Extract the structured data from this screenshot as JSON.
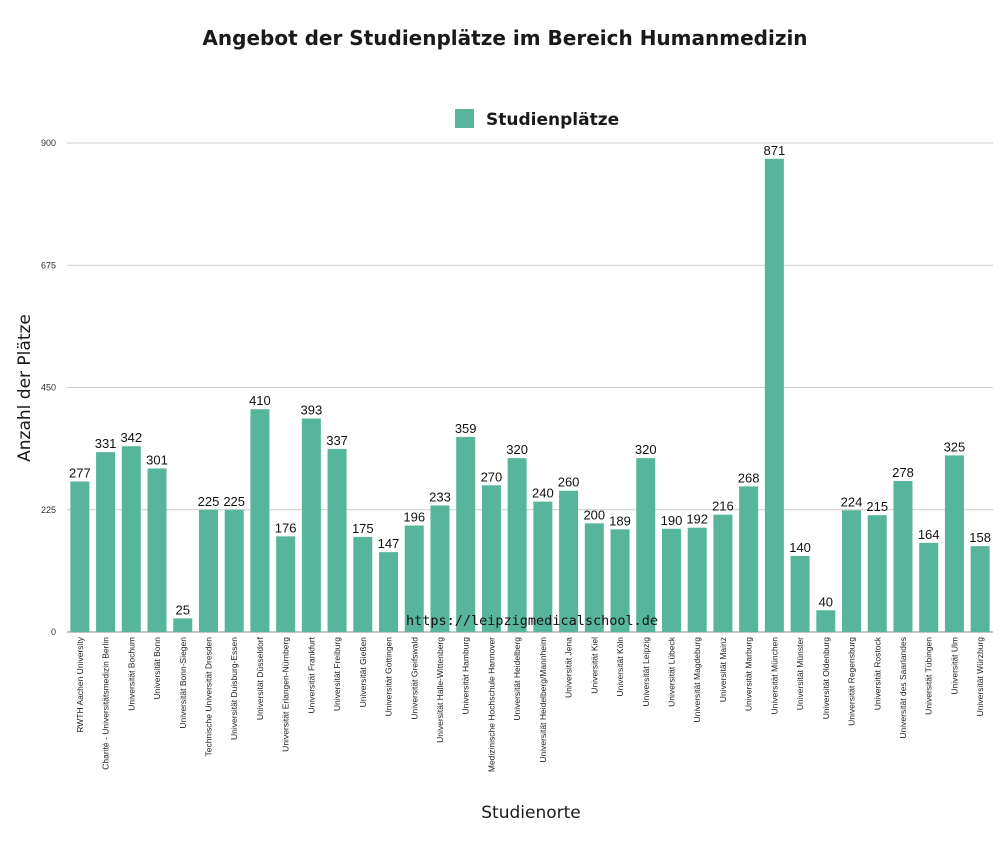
{
  "colors": {
    "bar": "#57b59b",
    "grid": "#cccccc",
    "axis": "#888888"
  },
  "watermark": "https://leipzigmedicalschool.de",
  "chart_data": {
    "type": "bar",
    "title": "Angebot der Studienplätze im Bereich Humanmedizin",
    "xlabel": "Studienorte",
    "ylabel": "Anzahl der Plätze",
    "ylim": [
      0,
      900
    ],
    "yticks": [
      "0",
      "225",
      "450",
      "675",
      "900"
    ],
    "legend_position": "top-center",
    "grid": true,
    "categories": [
      "RWTH Aachen University",
      "Charité - Universitätsmedizin Berlin",
      "Universität Bochum",
      "Universität Bonn",
      "Universität Bonn-Siegen",
      "Technische Universität Dresden",
      "Universität Duisburg-Essen",
      "Universität Düsseldorf",
      "Universität Erlangen-Nürnberg",
      "Universität Frankfurt",
      "Universität Freiburg",
      "Universität Gießen",
      "Universität Göttingen",
      "Universität Greifswald",
      "Universität Halle-Wittenberg",
      "Universität Hamburg",
      "Medizinische Hochschule Hannover",
      "Universität Heidelberg",
      "Universität Heidelberg/Mannheim",
      "Universität Jena",
      "Universität Kiel",
      "Universität Köln",
      "Universität Leipzig",
      "Universität Lübeck",
      "Universität Magdeburg",
      "Universität Mainz",
      "Universität Marburg",
      "Universität München",
      "Universität Münster",
      "Universität Oldenburg",
      "Universität Regensburg",
      "Universität Rostock",
      "Universität des Saarlandes",
      "Universität Tübingen",
      "Universität Ulm",
      "Universität Würzburg"
    ],
    "series": [
      {
        "name": "Studienplätze",
        "values": [
          277,
          331,
          342,
          301,
          25,
          225,
          225,
          410,
          176,
          393,
          337,
          175,
          147,
          196,
          233,
          359,
          270,
          320,
          240,
          260,
          200,
          189,
          320,
          190,
          192,
          216,
          268,
          871,
          140,
          40,
          224,
          215,
          278,
          164,
          325,
          158
        ]
      }
    ]
  }
}
